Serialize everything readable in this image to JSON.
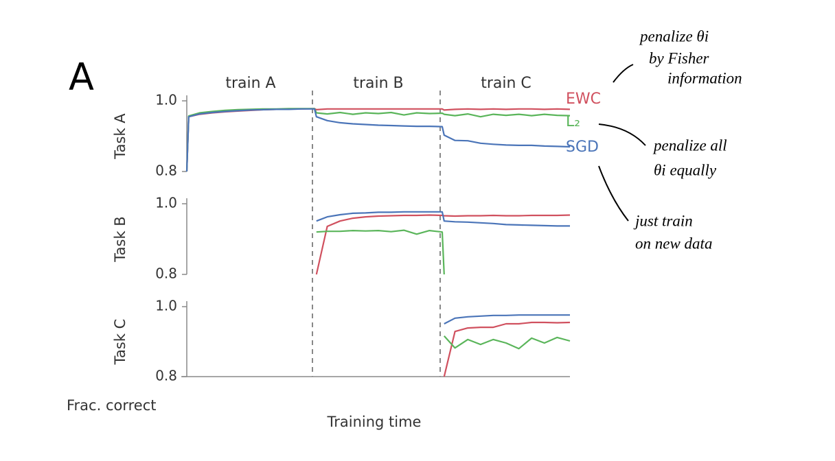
{
  "panel_label": "A",
  "x_label": "Training time",
  "y_caption": "Frac. correct",
  "phases": {
    "labels": [
      "train A",
      "train B",
      "train C"
    ],
    "boundaries": [
      20,
      40
    ]
  },
  "annotations": [
    {
      "lines": [
        "penalize θi",
        "by Fisher",
        "information"
      ]
    },
    {
      "lines": [
        "penalize all",
        "θi equally"
      ]
    },
    {
      "lines": [
        "just train",
        "on new data"
      ]
    }
  ],
  "chart_data": [
    {
      "type": "line",
      "y_label": "Task A",
      "x": [
        0,
        0.3,
        2,
        4,
        6,
        8,
        10,
        12,
        14,
        16,
        18,
        20,
        20.3,
        22,
        24,
        26,
        28,
        30,
        32,
        34,
        36,
        38,
        40,
        40.3,
        42,
        44,
        46,
        48,
        50,
        52,
        54,
        56,
        58,
        60
      ],
      "xlim": [
        0,
        60
      ],
      "ylim": [
        0.8,
        1.0
      ],
      "yticks": [
        0.8,
        {
          "value": 1.0,
          "label": "1.0"
        }
      ],
      "series": [
        {
          "name": "EWC",
          "color": "#d0505e",
          "values": [
            0.8,
            0.955,
            0.962,
            0.966,
            0.969,
            0.971,
            0.973,
            0.975,
            0.976,
            0.977,
            0.977,
            0.978,
            0.975,
            0.977,
            0.977,
            0.977,
            0.977,
            0.977,
            0.977,
            0.977,
            0.977,
            0.977,
            0.977,
            0.974,
            0.976,
            0.977,
            0.976,
            0.977,
            0.976,
            0.977,
            0.977,
            0.976,
            0.977,
            0.976
          ]
        },
        {
          "name": "L₂",
          "color": "#5ab55a",
          "values": [
            0.8,
            0.957,
            0.966,
            0.97,
            0.973,
            0.975,
            0.976,
            0.977,
            0.977,
            0.978,
            0.978,
            0.978,
            0.966,
            0.963,
            0.967,
            0.962,
            0.966,
            0.964,
            0.967,
            0.96,
            0.966,
            0.964,
            0.965,
            0.962,
            0.958,
            0.963,
            0.955,
            0.962,
            0.959,
            0.962,
            0.958,
            0.962,
            0.959,
            0.958
          ]
        },
        {
          "name": "SGD",
          "color": "#4a74b8",
          "values": [
            0.8,
            0.955,
            0.963,
            0.967,
            0.97,
            0.972,
            0.974,
            0.975,
            0.976,
            0.976,
            0.977,
            0.977,
            0.955,
            0.944,
            0.938,
            0.935,
            0.933,
            0.931,
            0.93,
            0.929,
            0.928,
            0.928,
            0.927,
            0.903,
            0.888,
            0.887,
            0.88,
            0.877,
            0.875,
            0.874,
            0.874,
            0.872,
            0.871,
            0.87
          ]
        }
      ]
    },
    {
      "type": "line",
      "y_label": "Task B",
      "x": [
        0,
        0.3,
        2,
        4,
        6,
        8,
        10,
        12,
        14,
        16,
        18,
        20,
        20.3,
        22,
        24,
        26,
        28,
        30,
        32,
        34,
        36,
        38,
        40,
        40.3,
        42,
        44,
        46,
        48,
        50,
        52,
        54,
        56,
        58,
        60
      ],
      "xlim": [
        0,
        60
      ],
      "ylim": [
        0.8,
        1.0
      ],
      "yticks": [
        0.8,
        {
          "value": 1.0,
          "label": "1.0"
        }
      ],
      "series": [
        {
          "color": "#d0505e",
          "values": [
            null,
            null,
            null,
            null,
            null,
            null,
            null,
            null,
            null,
            null,
            null,
            null,
            0.8,
            0.936,
            0.951,
            0.959,
            0.963,
            0.965,
            0.966,
            0.967,
            0.967,
            0.968,
            0.967,
            0.966,
            0.965,
            0.966,
            0.966,
            0.967,
            0.966,
            0.966,
            0.967,
            0.967,
            0.967,
            0.968
          ]
        },
        {
          "color": "#5ab55a",
          "values": [
            null,
            null,
            null,
            null,
            null,
            null,
            null,
            null,
            null,
            null,
            null,
            null,
            0.92,
            0.922,
            0.922,
            0.924,
            0.923,
            0.924,
            0.921,
            0.925,
            0.914,
            0.924,
            0.92,
            0.8,
            null,
            null,
            null,
            null,
            null,
            null,
            null,
            null,
            null,
            null
          ]
        },
        {
          "color": "#4a74b8",
          "values": [
            null,
            null,
            null,
            null,
            null,
            null,
            null,
            null,
            null,
            null,
            null,
            null,
            0.951,
            0.963,
            0.969,
            0.973,
            0.974,
            0.976,
            0.976,
            0.977,
            0.977,
            0.977,
            0.977,
            0.951,
            0.949,
            0.948,
            0.946,
            0.944,
            0.941,
            0.94,
            0.939,
            0.938,
            0.937,
            0.937
          ]
        }
      ]
    },
    {
      "type": "line",
      "y_label": "Task C",
      "x": [
        0,
        0.3,
        2,
        4,
        6,
        8,
        10,
        12,
        14,
        16,
        18,
        20,
        20.3,
        22,
        24,
        26,
        28,
        30,
        32,
        34,
        36,
        38,
        40,
        40.3,
        42,
        44,
        46,
        48,
        50,
        52,
        54,
        56,
        58,
        60
      ],
      "xlim": [
        0,
        60
      ],
      "ylim": [
        0.8,
        1.0
      ],
      "yticks": [
        0.8,
        {
          "value": 1.0,
          "label": "1.0"
        }
      ],
      "series": [
        {
          "color": "#d0505e",
          "values": [
            null,
            null,
            null,
            null,
            null,
            null,
            null,
            null,
            null,
            null,
            null,
            null,
            null,
            null,
            null,
            null,
            null,
            null,
            null,
            null,
            null,
            null,
            null,
            0.8,
            0.929,
            0.939,
            0.941,
            0.941,
            0.951,
            0.951,
            0.955,
            0.955,
            0.954,
            0.955
          ]
        },
        {
          "color": "#5ab55a",
          "values": [
            null,
            null,
            null,
            null,
            null,
            null,
            null,
            null,
            null,
            null,
            null,
            null,
            null,
            null,
            null,
            null,
            null,
            null,
            null,
            null,
            null,
            null,
            null,
            0.916,
            0.882,
            0.906,
            0.892,
            0.906,
            0.896,
            0.88,
            0.91,
            0.896,
            0.912,
            0.902
          ]
        },
        {
          "color": "#4a74b8",
          "values": [
            null,
            null,
            null,
            null,
            null,
            null,
            null,
            null,
            null,
            null,
            null,
            null,
            null,
            null,
            null,
            null,
            null,
            null,
            null,
            null,
            null,
            null,
            null,
            0.951,
            0.967,
            0.971,
            0.973,
            0.975,
            0.975,
            0.976,
            0.976,
            0.976,
            0.976,
            0.976
          ]
        }
      ]
    }
  ]
}
